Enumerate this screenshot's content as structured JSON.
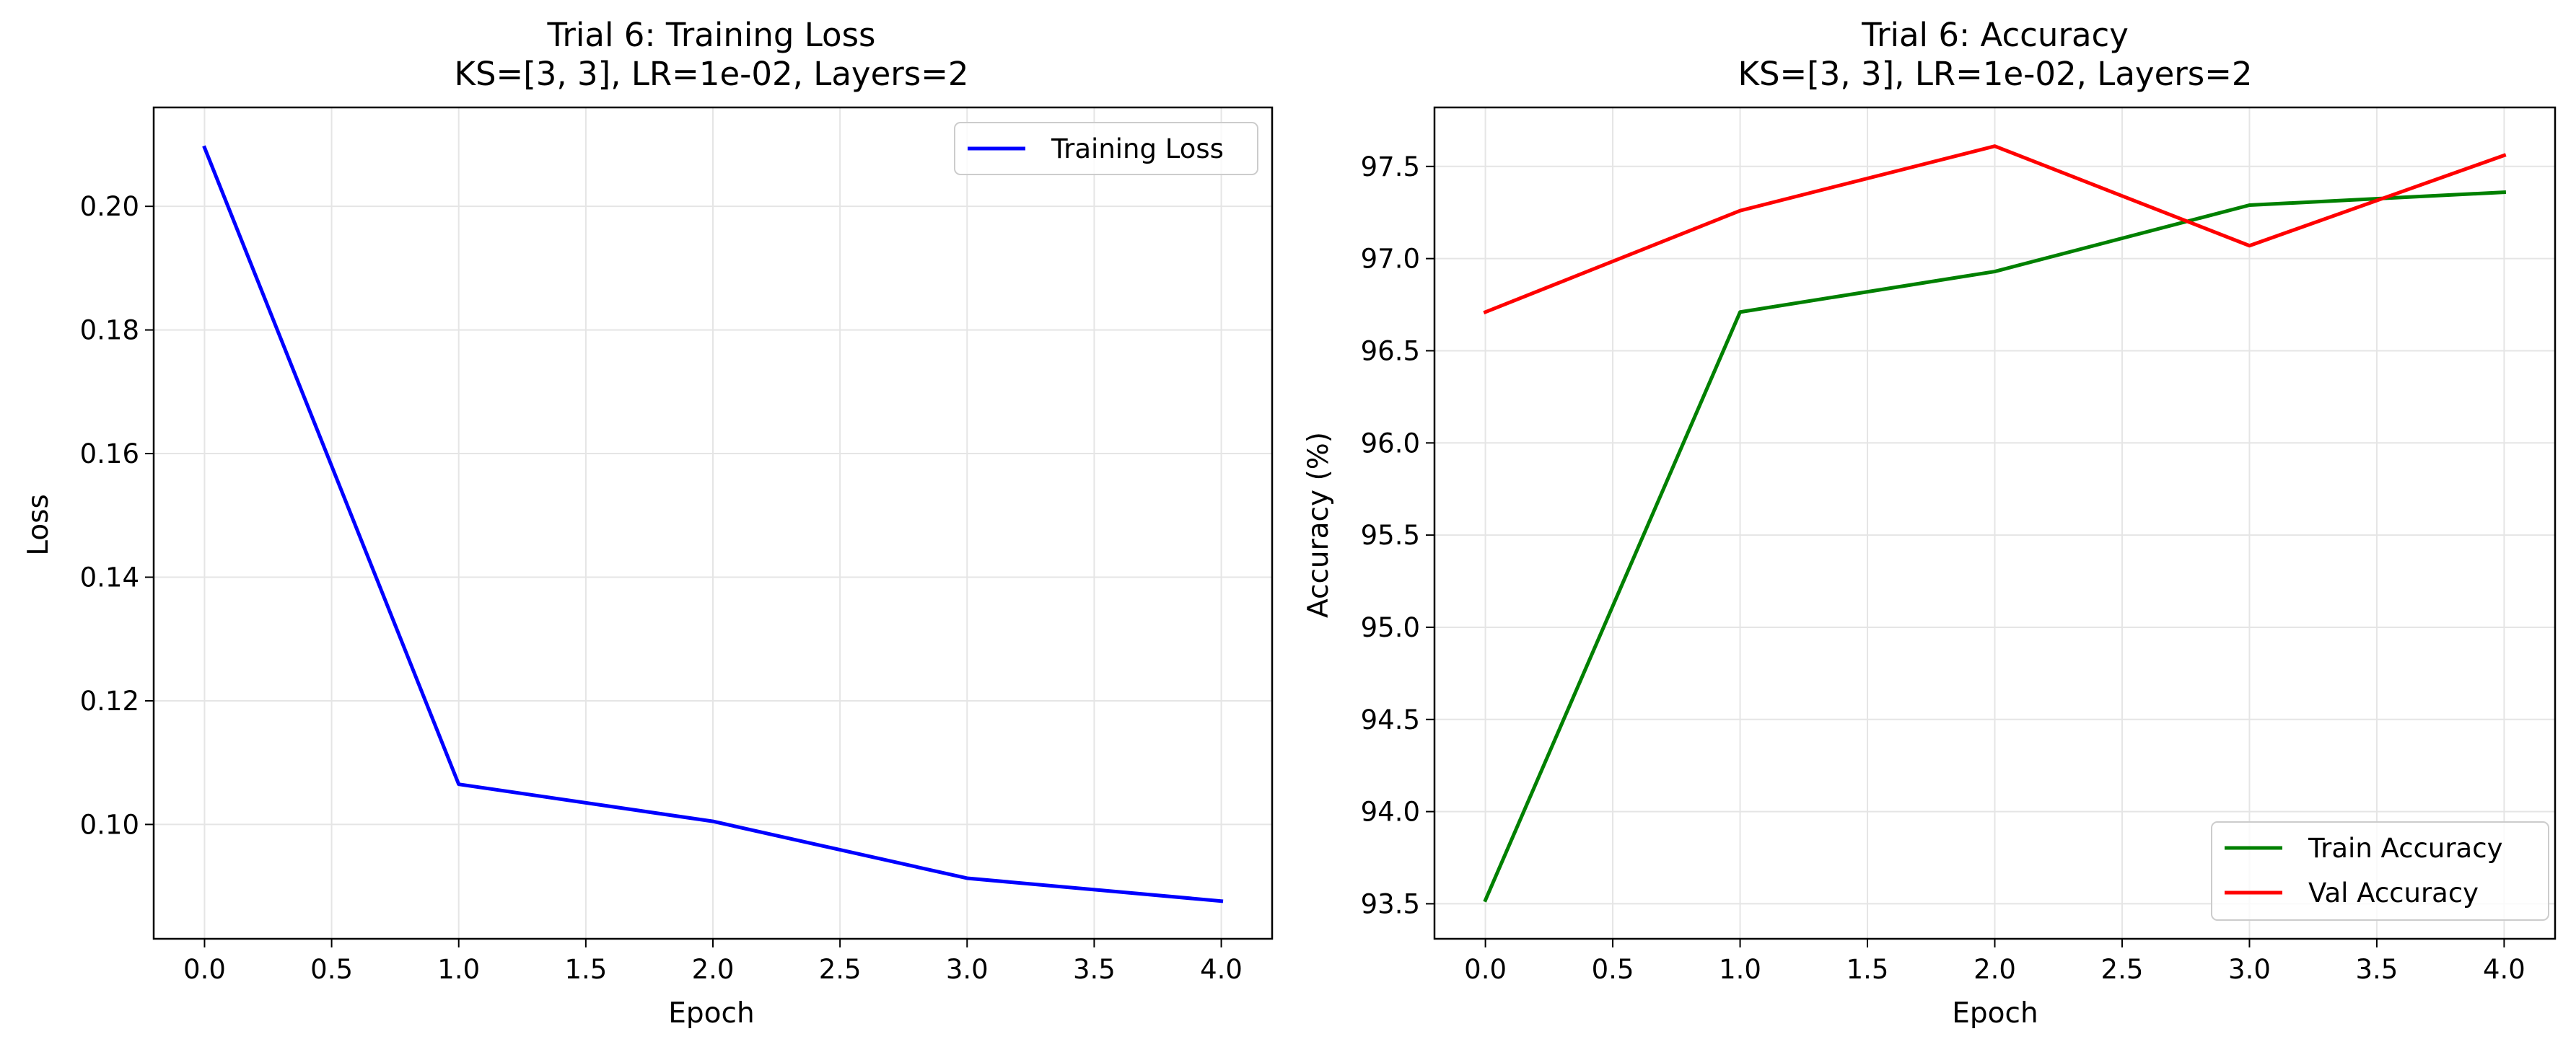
{
  "chart_data": [
    {
      "type": "line",
      "title_line1": "Trial 6: Training Loss",
      "title_line2": "KS=[3, 3], LR=1e-02, Layers=2",
      "xlabel": "Epoch",
      "ylabel": "Loss",
      "xlim": [
        -0.2,
        4.2
      ],
      "ylim": [
        0.0815,
        0.216
      ],
      "xticks": [
        "0.0",
        "0.5",
        "1.0",
        "1.5",
        "2.0",
        "2.5",
        "3.0",
        "3.5",
        "4.0"
      ],
      "yticks": [
        "0.10",
        "0.12",
        "0.14",
        "0.16",
        "0.18",
        "0.20"
      ],
      "grid": true,
      "legend_position": "upper right",
      "x": [
        0,
        1,
        2,
        3,
        4
      ],
      "series": [
        {
          "name": "Training Loss",
          "color": "#0000ff",
          "values": [
            0.2095,
            0.1065,
            0.1005,
            0.0913,
            0.0876
          ]
        }
      ]
    },
    {
      "type": "line",
      "title_line1": "Trial 6: Accuracy",
      "title_line2": "KS=[3, 3], LR=1e-02, Layers=2",
      "xlabel": "Epoch",
      "ylabel": "Accuracy (%)",
      "xlim": [
        -0.2,
        4.2
      ],
      "ylim": [
        93.31,
        97.82
      ],
      "xticks": [
        "0.0",
        "0.5",
        "1.0",
        "1.5",
        "2.0",
        "2.5",
        "3.0",
        "3.5",
        "4.0"
      ],
      "yticks": [
        "93.5",
        "94.0",
        "94.5",
        "95.0",
        "95.5",
        "96.0",
        "96.5",
        "97.0",
        "97.5"
      ],
      "grid": true,
      "legend_position": "lower right",
      "x": [
        0,
        1,
        2,
        3,
        4
      ],
      "series": [
        {
          "name": "Train Accuracy",
          "color": "#008000",
          "values": [
            93.52,
            96.71,
            96.93,
            97.29,
            97.36
          ]
        },
        {
          "name": "Val Accuracy",
          "color": "#ff0000",
          "values": [
            96.71,
            97.26,
            97.61,
            97.07,
            97.56
          ]
        }
      ]
    }
  ]
}
